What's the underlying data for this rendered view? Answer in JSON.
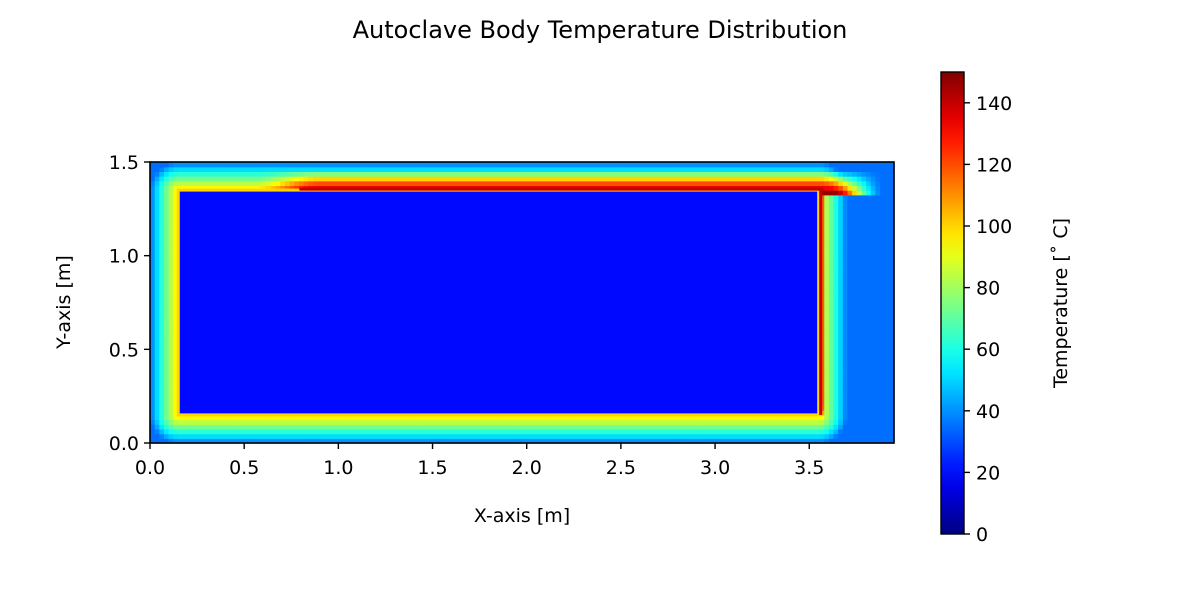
{
  "chart_data": {
    "type": "heatmap",
    "title": "Autoclave Body Temperature Distribution",
    "xlabel": "X-axis [m]",
    "ylabel": "Y-axis [m]",
    "xlim": [
      0,
      3.95
    ],
    "ylim": [
      0,
      1.5
    ],
    "xticks": [
      0.0,
      0.5,
      1.0,
      1.5,
      2.0,
      2.5,
      3.0,
      3.5
    ],
    "xtick_labels": [
      "0.0",
      "0.5",
      "1.0",
      "1.5",
      "2.0",
      "2.5",
      "3.0",
      "3.5"
    ],
    "yticks": [
      0.0,
      0.5,
      1.0,
      1.5
    ],
    "ytick_labels": [
      "0.0",
      "0.5",
      "1.0",
      "1.5"
    ],
    "colormap": "jet",
    "colorbar": {
      "label": "Temperature [$^\\circ$C]",
      "label_text": "Temperature [˚ C]",
      "range": [
        0,
        150
      ],
      "ticks": [
        0,
        20,
        40,
        60,
        80,
        100,
        120,
        140
      ],
      "tick_labels": [
        "0",
        "20",
        "40",
        "60",
        "80",
        "100",
        "120",
        "140"
      ]
    },
    "inner_region": {
      "x": [
        0.15,
        3.55
      ],
      "y": [
        0.15,
        1.35
      ],
      "temperature": 20
    },
    "wall_temperature": 100,
    "hot_top_wall": {
      "x": [
        0.65,
        3.55
      ],
      "temperature": 140
    },
    "hot_right_wall": {
      "y": [
        0.15,
        1.35
      ],
      "temperature": 140
    },
    "outer_edge_temperature": 35,
    "grid": false,
    "legend": "none"
  }
}
